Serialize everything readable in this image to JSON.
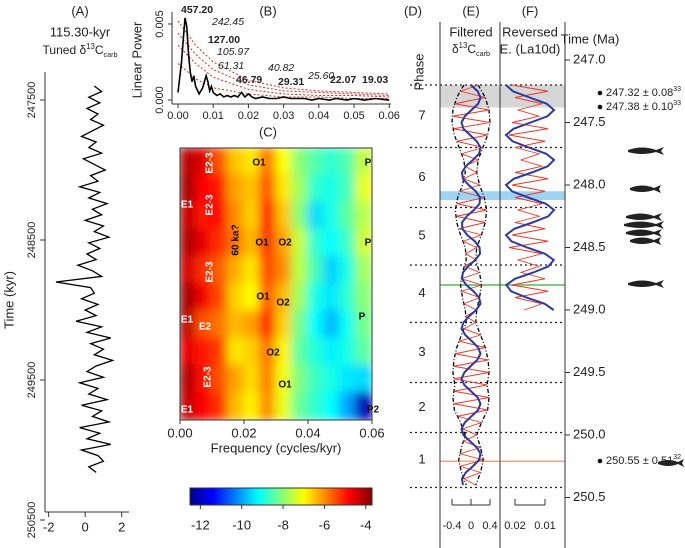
{
  "chart_data": [
    {
      "type": "vline",
      "title": "(A)",
      "subtitle": "115.30-kyr",
      "label": {
        "text": "Tuned δ",
        "sup": "13",
        "main": "C",
        "sub": "carb"
      },
      "ylabel": "Time (kyr)",
      "time": [
        247400,
        247440,
        247480,
        247520,
        247560,
        247600,
        247640,
        247680,
        247720,
        247760,
        247800,
        247840,
        247880,
        247920,
        247960,
        248000,
        248040,
        248080,
        248120,
        248160,
        248200,
        248240,
        248280,
        248320,
        248360,
        248400,
        248440,
        248480,
        248520,
        248560,
        248600,
        248640,
        248680,
        248720,
        248760,
        248800,
        248840,
        248880,
        248920,
        248960,
        249000,
        249040,
        249080,
        249120,
        249160,
        249200,
        249240,
        249280,
        249320,
        249360,
        249400,
        249440,
        249480,
        249520,
        249560,
        249600,
        249640,
        249680,
        249720,
        249760,
        249800,
        249840,
        249880,
        249920,
        249960,
        250000,
        250040,
        250080,
        250120,
        250160
      ],
      "values": [
        0.5,
        0.9,
        0.2,
        0.8,
        0.1,
        0.7,
        0.3,
        1.0,
        0.4,
        -0.2,
        0.6,
        0.2,
        0.9,
        -0.1,
        0.5,
        1.1,
        0.3,
        0.7,
        -0.3,
        0.8,
        0.2,
        1.2,
        0.4,
        0.9,
        0.0,
        1.0,
        0.5,
        1.3,
        0.2,
        0.8,
        0.1,
        0.6,
        -0.4,
        0.4,
        0.9,
        -1.6,
        0.3,
        0.5,
        -0.2,
        0.7,
        0.0,
        0.6,
        -0.5,
        0.9,
        0.1,
        1.4,
        0.3,
        1.0,
        0.5,
        1.5,
        0.6,
        0.1,
        1.0,
        -0.3,
        0.7,
        0.2,
        1.2,
        -0.2,
        0.9,
        0.4,
        1.3,
        -0.3,
        0.8,
        0.1,
        1.4,
        -0.2,
        0.7,
        1.0,
        0.2,
        0.6
      ],
      "color": "#000000",
      "xlim": [
        -2.2,
        2.4
      ],
      "xticks": [
        -2,
        0,
        2
      ],
      "ylim": [
        247300,
        250600
      ],
      "yticks": [
        247500,
        248500,
        249500,
        250500
      ]
    },
    {
      "type": "line",
      "title": "(B)",
      "ylabel": "Linear Power",
      "x": [
        0,
        0.001,
        0.0015,
        0.002,
        0.0025,
        0.003,
        0.0035,
        0.004,
        0.0045,
        0.005,
        0.006,
        0.007,
        0.0075,
        0.008,
        0.0085,
        0.009,
        0.0095,
        0.01,
        0.011,
        0.012,
        0.013,
        0.014,
        0.015,
        0.016,
        0.017,
        0.018,
        0.019,
        0.02,
        0.021,
        0.022,
        0.024,
        0.026,
        0.028,
        0.03,
        0.032,
        0.034,
        0.036,
        0.038,
        0.04,
        0.043,
        0.045,
        0.048,
        0.05,
        0.053,
        0.056,
        0.06
      ],
      "series": [
        {
          "color": "#000000",
          "values": [
            0.0005,
            0.0025,
            0.004,
            0.0054,
            0.0048,
            0.003,
            0.0018,
            0.0012,
            0.0016,
            0.0009,
            0.0004,
            0.0008,
            0.0012,
            0.0016,
            0.0012,
            0.0006,
            0.0009,
            0.0005,
            0.0003,
            0.0004,
            0.0002,
            0.0003,
            0.0002,
            0.0003,
            0.0002,
            0.0005,
            0.0002,
            0.0004,
            0.0002,
            0.0001,
            0.0002,
            0.0001,
            0.0001,
            0.0002,
            0.0001,
            0.0001,
            0.0001,
            0.0,
            0.0001,
            0.0,
            0.0001,
            0.0,
            0.0001,
            0.0,
            0.0001,
            0.0
          ]
        }
      ],
      "confidence_x": [
        0,
        0.005,
        0.01,
        0.02,
        0.03,
        0.04,
        0.05,
        0.06
      ],
      "confidence": [
        {
          "color": "#d7301f",
          "values": [
            0.0052,
            0.0036,
            0.0025,
            0.0013,
            0.0008,
            0.0006,
            0.0005,
            0.0004
          ]
        },
        {
          "color": "#d7301f",
          "values": [
            0.0044,
            0.003,
            0.002,
            0.001,
            0.0006,
            0.0005,
            0.0004,
            0.0003
          ]
        },
        {
          "color": "#d7301f",
          "values": [
            0.0036,
            0.0024,
            0.0015,
            0.0007,
            0.0004,
            0.0003,
            0.0003,
            0.0002
          ]
        },
        {
          "color": "#d7301f",
          "values": [
            0.0024,
            0.0014,
            0.0008,
            0.0004,
            0.0002,
            0.0002,
            0.0001,
            0.0001
          ]
        }
      ],
      "peaks": [
        "457.20",
        "242.45",
        "127.00",
        "105.97",
        "61.31",
        "46.79",
        "40.82",
        "29.31",
        "25.60",
        "22.07",
        "19.03"
      ],
      "peak_bold": [
        true,
        false,
        true,
        false,
        false,
        true,
        false,
        true,
        false,
        true,
        true
      ],
      "xlim": [
        0,
        0.0605
      ],
      "xticks": [
        {
          "value": 0,
          "label": "0.00"
        },
        {
          "value": 0.01,
          "label": "0.01"
        },
        {
          "value": 0.02,
          "label": "0.02"
        },
        {
          "value": 0.03,
          "label": "0.03"
        },
        {
          "value": 0.04,
          "label": "0.04"
        },
        {
          "value": 0.05,
          "label": "0.05"
        },
        {
          "value": 0.06,
          "label": "0.06"
        }
      ],
      "ylim": [
        -0.0003,
        0.0058
      ],
      "yticks": [
        {
          "value": 0,
          "label": "0.000"
        },
        {
          "value": 0.005,
          "label": "0.005"
        }
      ]
    },
    {
      "type": "heatmap",
      "title": "(C)",
      "xlabel": "Frequency (cycles/kyr)",
      "xlim": [
        0,
        0.06
      ],
      "xticks": [
        {
          "value": 0,
          "label": "0.00"
        },
        {
          "value": 0.02,
          "label": "0.02"
        },
        {
          "value": 0.04,
          "label": "0.04"
        },
        {
          "value": 0.06,
          "label": "0.06"
        }
      ],
      "z": [
        [
          -4.2,
          -4.5,
          -5.5,
          -6.5,
          -6.8,
          -5.8,
          -7,
          -8,
          -8.5,
          -8.8,
          -8.5,
          -7.5
        ],
        [
          -4.0,
          -4.8,
          -5,
          -6.2,
          -6.5,
          -5.5,
          -6.8,
          -7.8,
          -8.8,
          -9,
          -8.6,
          -7.2
        ],
        [
          -4.3,
          -5,
          -4.8,
          -6,
          -6.6,
          -5,
          -6.5,
          -8,
          -9.5,
          -9,
          -8.4,
          -7.6
        ],
        [
          -4.1,
          -4.6,
          -5.2,
          -5.8,
          -6.4,
          -5.2,
          -6.2,
          -7.5,
          -8.8,
          -9.2,
          -8.7,
          -7.4
        ],
        [
          -4.4,
          -5.2,
          -5.6,
          -6.3,
          -6.8,
          -5.4,
          -6,
          -7.6,
          -8.6,
          -9.6,
          -9,
          -7.8
        ],
        [
          -4.0,
          -4.7,
          -5.4,
          -6.6,
          -7,
          -5.6,
          -6.4,
          -7.8,
          -9,
          -9.4,
          -8.8,
          -8
        ],
        [
          -4.2,
          -5.5,
          -5.8,
          -6.4,
          -6.2,
          -5.1,
          -6.6,
          -8.2,
          -9.2,
          -9.8,
          -9.1,
          -8.2
        ],
        [
          -4.6,
          -5,
          -5.3,
          -6.8,
          -6.6,
          -5.8,
          -6.9,
          -8.4,
          -8.9,
          -9.3,
          -9,
          -8.4
        ],
        [
          -4.1,
          -4.9,
          -5.5,
          -6.2,
          -6.7,
          -5.9,
          -7.1,
          -8.1,
          -8.7,
          -9,
          -9.4,
          -9.5
        ],
        [
          -4.3,
          -4.8,
          -5.2,
          -6.4,
          -6.9,
          -6,
          -7.2,
          -8.3,
          -8.8,
          -9.2,
          -10,
          -12
        ]
      ],
      "zlim": [
        -12.5,
        -3.7
      ],
      "zticks": [
        -12,
        -10,
        -8,
        -6,
        -4
      ],
      "colormap": "jet",
      "labels": [
        "E2-3",
        "O1",
        "P",
        "E1",
        "E2-3",
        "O1",
        "O2",
        "P",
        "60 ka?",
        "E2-3",
        "O1",
        "O2",
        "E1",
        "E2",
        "P",
        "O2",
        "E2-3",
        "O1",
        "E1",
        "P2"
      ]
    },
    {
      "type": "phases",
      "title": "(D)",
      "ylabel": "Phase",
      "ytitle": "Time (Ma)",
      "phases": [
        "7",
        "6",
        "5",
        "4",
        "3",
        "2",
        "1"
      ],
      "boundaries": [
        247.2,
        247.7,
        248.18,
        248.64,
        249.1,
        249.58,
        249.98,
        250.42
      ],
      "ylim": [
        246.8,
        250.8
      ],
      "yticks": [
        {
          "value": 247,
          "label": "247.0"
        },
        247.5,
        {
          "value": 248,
          "label": "248.0"
        },
        248.5,
        {
          "value": 249,
          "label": "249.0"
        },
        249.5,
        {
          "value": 250,
          "label": "250.0"
        },
        250.5
      ],
      "bands": [
        {
          "range": [
            247.2,
            247.38
          ],
          "color": "#cfcfcf"
        },
        {
          "range": [
            248.05,
            248.12
          ],
          "color": "#8fcbef"
        }
      ],
      "lines": [
        {
          "value": 248.8,
          "color": "#5cb85c"
        },
        {
          "value": 250.21,
          "color": "#f2a58a"
        }
      ],
      "dates": [
        {
          "text": "247.32 ± 0.08",
          "ref": "33"
        },
        {
          "text": "247.38 ± 0.10",
          "ref": "33"
        },
        {
          "text": "250.55 ± 0.51",
          "ref": "32"
        }
      ]
    },
    {
      "type": "vline",
      "title": "(E)",
      "label1": "Filtered",
      "label": {
        "text": "δ",
        "sup": "13",
        "main": "C",
        "sub": "carb"
      },
      "time": [
        247.2,
        247.25,
        247.3,
        247.35,
        247.4,
        247.45,
        247.5,
        247.55,
        247.6,
        247.65,
        247.7,
        247.75,
        247.8,
        247.85,
        247.9,
        247.95,
        248,
        248.05,
        248.1,
        248.15,
        248.2,
        248.25,
        248.3,
        248.35,
        248.4,
        248.45,
        248.5,
        248.55,
        248.6,
        248.65,
        248.7,
        248.75,
        248.8,
        248.85,
        248.9,
        248.95,
        249,
        249.05,
        249.1,
        249.15,
        249.2,
        249.25,
        249.3,
        249.35,
        249.4,
        249.45,
        249.5,
        249.55,
        249.6,
        249.65,
        249.7,
        249.75,
        249.8,
        249.85,
        249.9,
        249.95,
        250,
        250.05,
        250.1,
        250.15,
        250.2,
        250.25,
        250.3,
        250.35,
        250.4
      ],
      "series": [
        {
          "color": "#e8392b",
          "values": [
            0.15,
            -0.22,
            0.3,
            -0.34,
            0.38,
            -0.39,
            0.4,
            -0.37,
            0.35,
            -0.3,
            0.25,
            -0.2,
            0.15,
            -0.13,
            0.12,
            -0.15,
            0.18,
            -0.23,
            0.28,
            -0.3,
            0.33,
            -0.31,
            0.3,
            -0.26,
            0.22,
            -0.17,
            0.12,
            -0.11,
            0.1,
            -0.14,
            0.18,
            -0.2,
            0.22,
            -0.2,
            0.18,
            -0.15,
            0.12,
            -0.11,
            0.1,
            -0.15,
            0.2,
            -0.25,
            0.3,
            -0.33,
            0.36,
            -0.37,
            0.38,
            -0.36,
            0.34,
            -0.36,
            0.38,
            -0.36,
            0.35,
            -0.28,
            0.22,
            -0.17,
            0.12,
            -0.16,
            0.2,
            -0.23,
            0.26,
            -0.23,
            0.2,
            -0.15,
            0.1
          ]
        },
        {
          "color": "#2b3aa0",
          "values": [
            0,
            0.14,
            0.2,
            0.15,
            0.01,
            -0.13,
            -0.2,
            -0.16,
            -0.02,
            0.12,
            0.2,
            0.17,
            0.04,
            -0.11,
            -0.19,
            -0.17,
            -0.05,
            0.1,
            0.19,
            0.18,
            0.06,
            -0.09,
            -0.19,
            -0.18,
            -0.08,
            0.08,
            0.18,
            0.19,
            0.09,
            -0.06,
            -0.17,
            -0.19,
            -0.1,
            0.05,
            0.17,
            0.2,
            0.11,
            -0.04,
            -0.16,
            -0.2,
            -0.12,
            0.02,
            0.15,
            0.2,
            0.13,
            -0.01,
            -0.14,
            -0.2,
            -0.14,
            0,
            0.14,
            0.2,
            0.15,
            0.01,
            -0.13,
            -0.2,
            -0.16,
            -0.02,
            0.12,
            0.2,
            0.17,
            0.04,
            -0.11,
            -0.19,
            -0.17
          ]
        }
      ],
      "envelope_time": [
        247.2,
        247.3,
        247.4,
        247.5,
        247.6,
        247.7,
        247.8,
        247.9,
        248,
        248.1,
        248.2,
        248.3,
        248.4,
        248.5,
        248.6,
        248.7,
        248.8,
        248.9,
        249,
        249.1,
        249.2,
        249.3,
        249.4,
        249.5,
        249.6,
        249.7,
        249.8,
        249.9,
        250,
        250.1,
        250.2,
        250.3,
        250.4
      ],
      "envelope": [
        {
          "color": "#000000",
          "values": [
            0.15,
            0.3,
            0.38,
            0.4,
            0.35,
            0.25,
            0.15,
            0.12,
            0.18,
            0.28,
            0.33,
            0.3,
            0.22,
            0.12,
            0.1,
            0.18,
            0.22,
            0.18,
            0.12,
            0.1,
            0.2,
            0.3,
            0.36,
            0.38,
            0.34,
            0.38,
            0.35,
            0.22,
            0.12,
            0.2,
            0.26,
            0.2,
            0.1
          ]
        },
        {
          "color": "#000000",
          "values": [
            -0.15,
            -0.3,
            -0.38,
            -0.4,
            -0.35,
            -0.25,
            -0.15,
            -0.12,
            -0.18,
            -0.28,
            -0.33,
            -0.3,
            -0.22,
            -0.12,
            -0.1,
            -0.18,
            -0.22,
            -0.18,
            -0.12,
            -0.1,
            -0.2,
            -0.3,
            -0.36,
            -0.38,
            -0.34,
            -0.38,
            -0.35,
            -0.22,
            -0.12,
            -0.2,
            -0.26,
            -0.2,
            -0.1
          ]
        }
      ],
      "xlim": [
        -0.6,
        0.6
      ],
      "xticks": [
        -0.4,
        0,
        0.4
      ]
    },
    {
      "type": "vline",
      "title": "(F)",
      "label1": "Reversed",
      "label2": "E. (La10d)",
      "time": [
        247.2,
        247.25,
        247.3,
        247.35,
        247.4,
        247.45,
        247.5,
        247.55,
        247.6,
        247.65,
        247.7,
        247.75,
        247.8,
        247.85,
        247.9,
        247.95,
        248,
        248.05,
        248.1,
        248.15,
        248.2,
        248.25,
        248.3,
        248.35,
        248.4,
        248.45,
        248.5,
        248.55,
        248.6,
        248.65,
        248.7,
        248.75,
        248.8,
        248.85,
        248.9,
        248.95,
        249
      ],
      "series": [
        {
          "color": "#e8392b",
          "values": [
            0.021,
            0.009,
            0.02,
            0.011,
            0.019,
            0.012,
            0.021,
            0.009,
            0.022,
            0.01,
            0.02,
            0.012,
            0.018,
            0.011,
            0.02,
            0.009,
            0.021,
            0.01,
            0.02,
            0.011,
            0.019,
            0.012,
            0.02,
            0.01,
            0.021,
            0.009,
            0.022,
            0.011,
            0.019,
            0.012,
            0.018,
            0.01,
            0.021,
            0.009,
            0.02,
            0.011,
            0.017
          ]
        },
        {
          "color": "#2b3aa0",
          "values": [
            0.023,
            0.0207,
            0.0151,
            0.0094,
            0.007,
            0.0092,
            0.0148,
            0.0205,
            0.023,
            0.0208,
            0.0154,
            0.0096,
            0.007,
            0.0091,
            0.0144,
            0.0204,
            0.023,
            0.021,
            0.0156,
            0.0097,
            0.007,
            0.0089,
            0.0142,
            0.0202,
            0.023,
            0.0212,
            0.016,
            0.01,
            0.0071,
            0.0088,
            0.0139,
            0.02,
            0.0229,
            0.0213,
            0.0162,
            0.0101,
            0.0071
          ]
        }
      ],
      "xlim": [
        0.025,
        0.005
      ],
      "xticks": [
        0.02,
        0.01
      ]
    }
  ]
}
